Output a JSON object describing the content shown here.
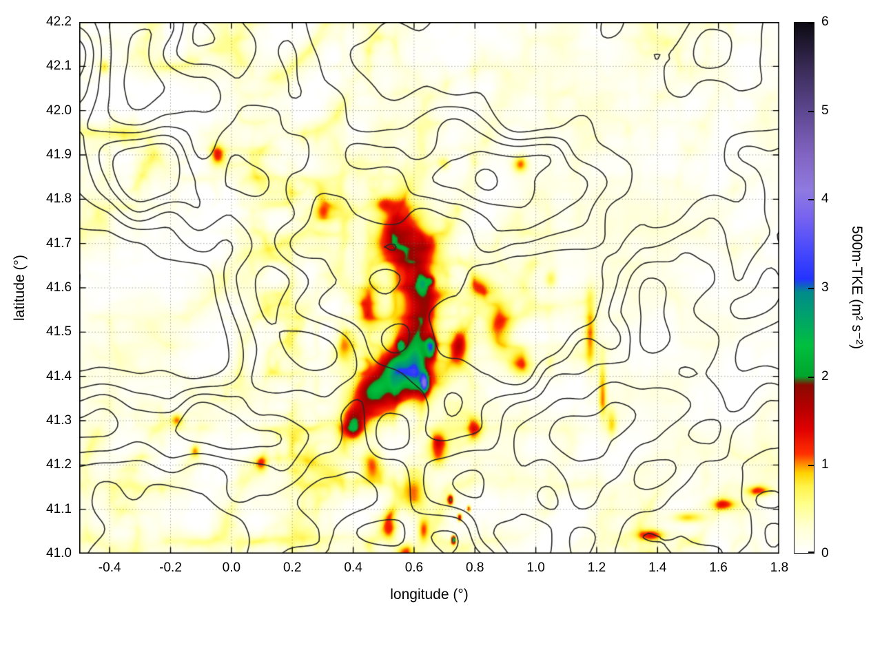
{
  "chart_data": {
    "type": "heatmap",
    "title": "",
    "xlabel": "longitude (°)",
    "ylabel": "latitude (°)",
    "x_range": [
      -0.5,
      1.8
    ],
    "y_range": [
      41.0,
      42.2
    ],
    "x_tick_values": [
      -0.4,
      -0.2,
      0.0,
      0.2,
      0.4,
      0.6,
      0.8,
      1.0,
      1.2,
      1.4,
      1.6,
      1.8
    ],
    "x_tick_labels": [
      "-0.4",
      "-0.2",
      "0.0",
      "0.2",
      "0.4",
      "0.6",
      "0.8",
      "1.0",
      "1.2",
      "1.4",
      "1.6",
      "1.8"
    ],
    "y_tick_values": [
      41.0,
      41.1,
      41.2,
      41.3,
      41.4,
      41.5,
      41.6,
      41.7,
      41.8,
      41.9,
      42.0,
      42.1,
      42.2
    ],
    "y_tick_labels": [
      "41.0",
      "41.1",
      "41.2",
      "41.3",
      "41.4",
      "41.5",
      "41.6",
      "41.7",
      "41.8",
      "41.9",
      "42.0",
      "42.1",
      "42.2"
    ],
    "grid": "dotted gray lines at major ticks",
    "legend": "none",
    "colorbar": {
      "label": "500m-TKE (m² s⁻²)",
      "range": [
        0,
        6
      ],
      "tick_values": [
        0,
        1,
        2,
        3,
        4,
        5,
        6
      ],
      "tick_labels": [
        "0",
        "1",
        "2",
        "3",
        "4",
        "5",
        "6"
      ],
      "position": "right",
      "palette_stops": [
        [
          0.0,
          "#ffffff"
        ],
        [
          0.3,
          "#ffffd2"
        ],
        [
          0.55,
          "#ffff8c"
        ],
        [
          0.75,
          "#fff34a"
        ],
        [
          0.9,
          "#ffd400"
        ],
        [
          1.0,
          "#ff8f00"
        ],
        [
          1.12,
          "#ff3000"
        ],
        [
          1.4,
          "#df0000"
        ],
        [
          1.65,
          "#b40000"
        ],
        [
          1.9,
          "#8a0a00"
        ],
        [
          2.0,
          "#00a52d"
        ],
        [
          2.35,
          "#00bf3f"
        ],
        [
          2.7,
          "#00a06e"
        ],
        [
          2.95,
          "#008b8b"
        ],
        [
          3.1,
          "#2333ff"
        ],
        [
          3.45,
          "#4b4bfb"
        ],
        [
          3.8,
          "#7763ef"
        ],
        [
          4.1,
          "#8f7ae0"
        ],
        [
          4.5,
          "#8264c2"
        ],
        [
          5.0,
          "#5d4790"
        ],
        [
          5.5,
          "#382a55"
        ],
        [
          6.0,
          "#0c0a12"
        ]
      ]
    },
    "overlay_contours": {
      "description": "black terrain/orography contour lines overlaid on the TKE field",
      "color": "#262626",
      "levels": [
        0.4,
        0.5,
        0.58,
        0.66,
        0.74
      ]
    },
    "field": {
      "description": "500 m turbulent kinetic energy field; mostly near-0 (white) with widespread filamentary yellow streaks (0.3-0.8), a strong red ridge (1-1.6) in the centre around 0.4-0.75 lon / 41.3-41.6 lat containing green cores (~2-2.5) and small blue/violet maxima (~3.5-4.3), scattered red spots elsewhere and a red diagonal streak in the bottom-right corner",
      "grid_lon_range": [
        -0.5,
        1.8
      ],
      "grid_lat_range": [
        41.0,
        42.2
      ],
      "amplitude_grid_rows_top_to_bottom": [
        [
          0.7,
          0.65,
          0.6,
          0.55,
          0.5,
          0.5,
          0.5,
          0.5,
          0.55,
          0.6,
          0.55,
          0.5,
          0.45,
          0.45,
          0.4,
          0.35,
          0.35,
          0.4,
          0.45,
          0.5,
          0.45,
          0.4,
          0.4,
          0.35
        ],
        [
          0.65,
          0.6,
          0.6,
          0.55,
          0.5,
          0.5,
          0.5,
          0.5,
          0.55,
          0.55,
          0.5,
          0.45,
          0.4,
          0.4,
          0.35,
          0.3,
          0.3,
          0.35,
          0.35,
          0.4,
          0.4,
          0.35,
          0.35,
          0.3
        ],
        [
          0.6,
          0.6,
          0.55,
          0.5,
          0.5,
          0.55,
          0.5,
          0.5,
          0.5,
          0.5,
          0.45,
          0.4,
          0.35,
          0.35,
          0.35,
          0.3,
          0.3,
          0.3,
          0.3,
          0.3,
          0.35,
          0.3,
          0.3,
          0.3
        ],
        [
          0.6,
          0.7,
          0.65,
          0.6,
          0.6,
          0.6,
          0.55,
          0.5,
          0.5,
          0.5,
          0.5,
          0.5,
          0.45,
          0.4,
          0.35,
          0.3,
          0.3,
          0.3,
          0.3,
          0.3,
          0.3,
          0.3,
          0.3,
          0.25
        ],
        [
          0.6,
          0.65,
          0.6,
          0.6,
          0.65,
          0.7,
          0.7,
          0.65,
          0.6,
          0.6,
          0.55,
          0.5,
          0.45,
          0.45,
          0.4,
          0.3,
          0.25,
          0.25,
          0.25,
          0.25,
          0.25,
          0.25,
          0.25,
          0.25
        ],
        [
          0.5,
          0.5,
          0.5,
          0.6,
          0.65,
          0.65,
          0.7,
          0.7,
          0.7,
          0.7,
          0.6,
          0.55,
          0.5,
          0.4,
          0.35,
          0.3,
          0.25,
          0.25,
          0.25,
          0.25,
          0.25,
          0.25,
          0.25,
          0.25
        ],
        [
          0.45,
          0.45,
          0.45,
          0.5,
          0.55,
          0.6,
          0.65,
          0.75,
          0.8,
          0.8,
          0.75,
          0.6,
          0.55,
          0.5,
          0.4,
          0.4,
          0.3,
          0.25,
          0.25,
          0.25,
          0.25,
          0.25,
          0.25,
          0.25
        ],
        [
          0.4,
          0.4,
          0.4,
          0.45,
          0.5,
          0.5,
          0.6,
          0.8,
          0.85,
          0.85,
          0.8,
          0.6,
          0.5,
          0.45,
          0.45,
          0.5,
          0.35,
          0.25,
          0.25,
          0.25,
          0.3,
          0.3,
          0.35,
          0.3
        ],
        [
          0.35,
          0.35,
          0.35,
          0.4,
          0.4,
          0.45,
          0.6,
          0.8,
          0.85,
          0.85,
          0.8,
          0.65,
          0.55,
          0.5,
          0.4,
          0.5,
          0.4,
          0.25,
          0.2,
          0.2,
          0.25,
          0.25,
          0.25,
          0.25
        ],
        [
          0.3,
          0.3,
          0.3,
          0.35,
          0.35,
          0.4,
          0.6,
          0.8,
          0.85,
          0.85,
          0.8,
          0.65,
          0.6,
          0.5,
          0.4,
          0.5,
          0.45,
          0.25,
          0.2,
          0.2,
          0.2,
          0.2,
          0.2,
          0.2
        ],
        [
          0.35,
          0.35,
          0.4,
          0.4,
          0.4,
          0.45,
          0.6,
          0.85,
          0.9,
          0.9,
          0.8,
          0.6,
          0.55,
          0.5,
          0.4,
          0.5,
          0.45,
          0.25,
          0.2,
          0.2,
          0.2,
          0.2,
          0.2,
          0.2
        ],
        [
          0.4,
          0.45,
          0.5,
          0.45,
          0.4,
          0.45,
          0.55,
          0.8,
          0.85,
          0.8,
          0.7,
          0.6,
          0.55,
          0.45,
          0.4,
          0.45,
          0.4,
          0.25,
          0.2,
          0.2,
          0.2,
          0.2,
          0.2,
          0.2
        ],
        [
          0.45,
          0.5,
          0.5,
          0.5,
          0.45,
          0.45,
          0.5,
          0.7,
          0.75,
          0.7,
          0.6,
          0.55,
          0.5,
          0.4,
          0.35,
          0.3,
          0.25,
          0.25,
          0.25,
          0.25,
          0.25,
          0.25,
          0.3,
          0.3
        ],
        [
          0.5,
          0.55,
          0.5,
          0.5,
          0.5,
          0.5,
          0.55,
          0.7,
          0.75,
          0.7,
          0.6,
          0.5,
          0.45,
          0.4,
          0.35,
          0.3,
          0.3,
          0.3,
          0.35,
          0.4,
          0.4,
          0.4,
          0.4,
          0.4
        ],
        [
          0.5,
          0.5,
          0.5,
          0.45,
          0.5,
          0.5,
          0.55,
          0.6,
          0.65,
          0.6,
          0.55,
          0.55,
          0.5,
          0.4,
          0.35,
          0.35,
          0.35,
          0.4,
          0.45,
          0.5,
          0.5,
          0.5,
          0.5,
          0.55
        ],
        [
          0.5,
          0.5,
          0.45,
          0.45,
          0.5,
          0.55,
          0.6,
          0.6,
          0.6,
          0.6,
          0.55,
          0.5,
          0.45,
          0.4,
          0.35,
          0.4,
          0.45,
          0.5,
          0.5,
          0.55,
          0.55,
          0.6,
          0.6,
          0.6
        ]
      ],
      "hotspot_format": [
        "lon",
        "lat",
        "sigma_lon",
        "sigma_lat",
        "amplitude_m2s-2"
      ],
      "hotspots": [
        [
          0.55,
          41.73,
          0.1,
          0.09,
          1.0
        ],
        [
          0.5,
          41.79,
          0.035,
          0.018,
          0.85
        ],
        [
          0.6,
          41.63,
          0.07,
          0.1,
          1.2
        ],
        [
          0.62,
          41.52,
          0.06,
          0.07,
          1.4
        ],
        [
          0.58,
          41.44,
          0.1,
          0.055,
          1.5
        ],
        [
          0.52,
          41.39,
          0.1,
          0.045,
          1.5
        ],
        [
          0.45,
          41.33,
          0.07,
          0.045,
          1.4
        ],
        [
          0.4,
          41.29,
          0.04,
          0.04,
          1.5
        ],
        [
          0.45,
          41.56,
          0.04,
          0.05,
          1.0
        ],
        [
          0.37,
          41.47,
          0.03,
          0.04,
          0.8
        ],
        [
          0.47,
          41.37,
          0.055,
          0.03,
          1.0
        ],
        [
          0.54,
          41.42,
          0.04,
          0.028,
          0.9
        ],
        [
          0.61,
          41.42,
          0.03,
          0.05,
          1.1
        ],
        [
          0.4,
          41.285,
          0.02,
          0.02,
          0.9
        ],
        [
          0.555,
          41.47,
          0.012,
          0.012,
          1.4
        ],
        [
          0.655,
          41.615,
          0.012,
          0.01,
          1.2
        ],
        [
          0.63,
          41.61,
          0.02,
          0.02,
          1.2
        ],
        [
          0.655,
          41.465,
          0.016,
          0.024,
          2.1
        ],
        [
          0.635,
          41.385,
          0.013,
          0.02,
          2.3
        ],
        [
          -0.42,
          42.1,
          0.018,
          0.018,
          0.9
        ],
        [
          -0.05,
          41.9,
          0.025,
          0.025,
          1.1
        ],
        [
          0.3,
          41.77,
          0.025,
          0.02,
          0.8
        ],
        [
          0.95,
          41.88,
          0.025,
          0.02,
          1.1
        ],
        [
          0.7,
          41.88,
          0.02,
          0.015,
          0.7
        ],
        [
          0.82,
          41.6,
          0.04,
          0.03,
          0.8
        ],
        [
          0.88,
          41.52,
          0.04,
          0.06,
          0.9
        ],
        [
          0.95,
          41.43,
          0.035,
          0.035,
          0.9
        ],
        [
          0.75,
          41.47,
          0.03,
          0.04,
          1.0
        ],
        [
          1.05,
          41.62,
          0.02,
          0.02,
          0.7
        ],
        [
          1.18,
          41.5,
          0.018,
          0.09,
          0.9
        ],
        [
          1.22,
          41.37,
          0.014,
          0.07,
          1.0
        ],
        [
          1.25,
          41.29,
          0.018,
          0.035,
          0.85
        ],
        [
          0.8,
          41.28,
          0.025,
          0.03,
          0.9
        ],
        [
          0.68,
          41.24,
          0.025,
          0.04,
          1.0
        ],
        [
          0.6,
          41.14,
          0.035,
          0.05,
          0.95
        ],
        [
          0.46,
          41.2,
          0.035,
          0.035,
          1.2
        ],
        [
          0.52,
          41.06,
          0.025,
          0.035,
          1.0
        ],
        [
          0.63,
          41.05,
          0.018,
          0.028,
          0.95
        ],
        [
          0.57,
          41.0,
          0.03,
          0.02,
          0.9
        ],
        [
          -0.18,
          41.3,
          0.02,
          0.015,
          0.9
        ],
        [
          -0.12,
          41.23,
          0.015,
          0.015,
          0.8
        ],
        [
          0.1,
          41.2,
          0.02,
          0.02,
          0.7
        ],
        [
          0.72,
          41.12,
          0.009,
          0.011,
          1.7
        ],
        [
          0.75,
          41.08,
          0.008,
          0.009,
          1.9
        ],
        [
          0.78,
          41.1,
          0.007,
          0.008,
          1.5
        ],
        [
          0.73,
          41.03,
          0.007,
          0.009,
          2.6
        ],
        [
          1.38,
          41.04,
          0.05,
          0.013,
          1.0
        ],
        [
          1.5,
          41.08,
          0.05,
          0.013,
          1.05
        ],
        [
          1.62,
          41.11,
          0.05,
          0.013,
          1.0
        ],
        [
          1.74,
          41.14,
          0.05,
          0.012,
          1.0
        ]
      ]
    },
    "noise_seed": 13.37
  }
}
